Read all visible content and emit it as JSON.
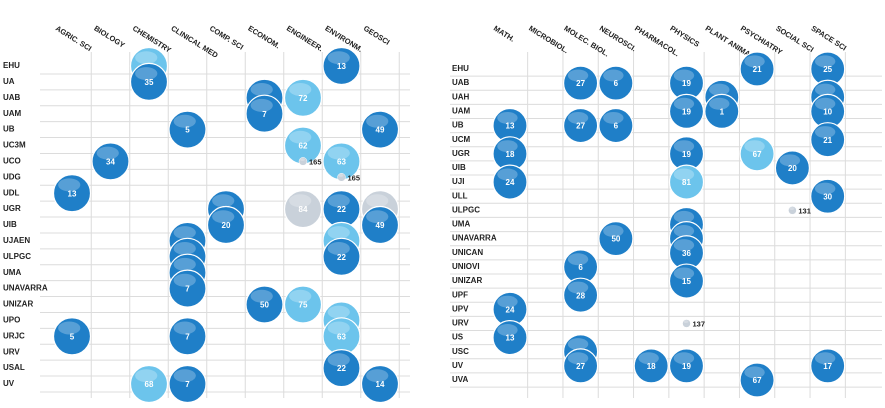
{
  "chart_data": [
    {
      "type": "bubble",
      "columns": [
        "AGRIC. SCI",
        "BIOLOGY",
        "CHEMISTRY",
        "CLINICAL MED",
        "COMP. SCI",
        "ECONOM.",
        "ENGINEER.",
        "ENVIRONM.",
        "GEOSCI"
      ],
      "rows": [
        "EHU",
        "UA",
        "UAB",
        "UAM",
        "UB",
        "UC3M",
        "UCO",
        "UDG",
        "UDL",
        "UGR",
        "UIB",
        "UJAEN",
        "ULPGC",
        "UMA",
        "UNAVARRA",
        "UNIZAR",
        "UPO",
        "URJC",
        "URV",
        "USAL",
        "UV"
      ],
      "grid": true,
      "bubbles": [
        {
          "row": "EHU",
          "column": "CHEMISTRY",
          "value": 68,
          "color": "#6cc4ec"
        },
        {
          "row": "EHU",
          "column": "ENVIRONM.",
          "value": 13,
          "color": "#1f7fc8"
        },
        {
          "row": "UA",
          "column": "CHEMISTRY",
          "value": 35,
          "color": "#1f7fc8"
        },
        {
          "row": "UAB",
          "column": "ECONOM.",
          "value": 7,
          "color": "#1f7fc8"
        },
        {
          "row": "UAB",
          "column": "ENGINEER.",
          "value": 72,
          "color": "#6cc4ec"
        },
        {
          "row": "UAM",
          "column": "ECONOM.",
          "value": 7,
          "color": "#1f7fc8"
        },
        {
          "row": "UB",
          "column": "CLINICAL MED",
          "value": 5,
          "color": "#1f7fc8"
        },
        {
          "row": "UB",
          "column": "GEOSCI",
          "value": 49,
          "color": "#1f7fc8"
        },
        {
          "row": "UC3M",
          "column": "ENGINEER.",
          "value": 62,
          "color": "#6cc4ec"
        },
        {
          "row": "UCO",
          "column": "BIOLOGY",
          "value": 34,
          "color": "#1f7fc8"
        },
        {
          "row": "UCO",
          "column": "ENGINEER.",
          "value": 165,
          "color": "#c9d1da"
        },
        {
          "row": "UCO",
          "column": "ENVIRONM.",
          "value": 63,
          "color": "#6cc4ec"
        },
        {
          "row": "UDG",
          "column": "ENVIRONM.",
          "value": 165,
          "color": "#c9d1da"
        },
        {
          "row": "UDL",
          "column": "AGRIC. SCI",
          "value": 13,
          "color": "#1f7fc8"
        },
        {
          "row": "UGR",
          "column": "COMP. SCI",
          "value": 20,
          "color": "#1f7fc8"
        },
        {
          "row": "UGR",
          "column": "ENGINEER.",
          "value": 84,
          "color": "#c9d1da"
        },
        {
          "row": "UGR",
          "column": "ENVIRONM.",
          "value": 22,
          "color": "#1f7fc8"
        },
        {
          "row": "UGR",
          "column": "GEOSCI",
          "value": 72,
          "color": "#c9d1da"
        },
        {
          "row": "UIB",
          "column": "COMP. SCI",
          "value": 20,
          "color": "#1f7fc8"
        },
        {
          "row": "UIB",
          "column": "GEOSCI",
          "value": 49,
          "color": "#1f7fc8"
        },
        {
          "row": "UJAEN",
          "column": "CLINICAL MED",
          "value": 7,
          "color": "#1f7fc8"
        },
        {
          "row": "UJAEN",
          "column": "ENVIRONM.",
          "value": 63,
          "color": "#6cc4ec"
        },
        {
          "row": "ULPGC",
          "column": "CLINICAL MED",
          "value": 7,
          "color": "#1f7fc8"
        },
        {
          "row": "ULPGC",
          "column": "ENVIRONM.",
          "value": 22,
          "color": "#1f7fc8"
        },
        {
          "row": "UMA",
          "column": "CLINICAL MED",
          "value": 7,
          "color": "#1f7fc8"
        },
        {
          "row": "UNAVARRA",
          "column": "CLINICAL MED",
          "value": 7,
          "color": "#1f7fc8"
        },
        {
          "row": "UNIZAR",
          "column": "ECONOM.",
          "value": 50,
          "color": "#1f7fc8"
        },
        {
          "row": "UNIZAR",
          "column": "ENGINEER.",
          "value": 75,
          "color": "#6cc4ec"
        },
        {
          "row": "UPO",
          "column": "ENVIRONM.",
          "value": 63,
          "color": "#6cc4ec"
        },
        {
          "row": "URJC",
          "column": "AGRIC. SCI",
          "value": 5,
          "color": "#1f7fc8"
        },
        {
          "row": "URJC",
          "column": "CLINICAL MED",
          "value": 7,
          "color": "#1f7fc8"
        },
        {
          "row": "URJC",
          "column": "ENVIRONM.",
          "value": 63,
          "color": "#6cc4ec"
        },
        {
          "row": "USAL",
          "column": "ENVIRONM.",
          "value": 22,
          "color": "#1f7fc8"
        },
        {
          "row": "UV",
          "column": "CHEMISTRY",
          "value": 68,
          "color": "#6cc4ec"
        },
        {
          "row": "UV",
          "column": "CLINICAL MED",
          "value": 7,
          "color": "#1f7fc8"
        },
        {
          "row": "UV",
          "column": "GEOSCI",
          "value": 14,
          "color": "#1f7fc8"
        }
      ]
    },
    {
      "type": "bubble",
      "columns": [
        "MATH.",
        "MICROBIOL.",
        "MOLEC. BIOL.",
        "NEUROSCI.",
        "PHARMACOL.",
        "PHYSICS",
        "PLANT ANIMAL",
        "PSYCHIATRY",
        "SOCIAL SCI",
        "SPACE SCI"
      ],
      "rows": [
        "EHU",
        "UAB",
        "UAH",
        "UAM",
        "UB",
        "UCM",
        "UGR",
        "UIB",
        "UJI",
        "ULL",
        "ULPGC",
        "UMA",
        "UNAVARRA",
        "UNICAN",
        "UNIOVI",
        "UNIZAR",
        "UPF",
        "UPV",
        "URV",
        "US",
        "USC",
        "UV",
        "UVA"
      ],
      "grid": true,
      "bubbles": [
        {
          "row": "EHU",
          "column": "PSYCHIATRY",
          "value": 21,
          "color": "#1f7fc8"
        },
        {
          "row": "EHU",
          "column": "SPACE SCI",
          "value": 25,
          "color": "#1f7fc8"
        },
        {
          "row": "UAB",
          "column": "MOLEC. BIOL.",
          "value": 27,
          "color": "#1f7fc8"
        },
        {
          "row": "UAB",
          "column": "NEUROSCI.",
          "value": 6,
          "color": "#1f7fc8"
        },
        {
          "row": "UAB",
          "column": "PHYSICS",
          "value": 19,
          "color": "#1f7fc8"
        },
        {
          "row": "UAH",
          "column": "PLANT ANIMAL",
          "value": 29,
          "color": "#1f7fc8"
        },
        {
          "row": "UAH",
          "column": "SPACE SCI",
          "value": 10,
          "color": "#1f7fc8"
        },
        {
          "row": "UAM",
          "column": "PHYSICS",
          "value": 19,
          "color": "#1f7fc8"
        },
        {
          "row": "UAM",
          "column": "PLANT ANIMAL",
          "value": 1,
          "color": "#1f7fc8"
        },
        {
          "row": "UAM",
          "column": "SPACE SCI",
          "value": 10,
          "color": "#1f7fc8"
        },
        {
          "row": "UB",
          "column": "MATH.",
          "value": 13,
          "color": "#1f7fc8"
        },
        {
          "row": "UB",
          "column": "MOLEC. BIOL.",
          "value": 27,
          "color": "#1f7fc8"
        },
        {
          "row": "UB",
          "column": "NEUROSCI.",
          "value": 6,
          "color": "#1f7fc8"
        },
        {
          "row": "UCM",
          "column": "SPACE SCI",
          "value": 21,
          "color": "#1f7fc8"
        },
        {
          "row": "UGR",
          "column": "MATH.",
          "value": 18,
          "color": "#1f7fc8"
        },
        {
          "row": "UGR",
          "column": "PHYSICS",
          "value": 19,
          "color": "#1f7fc8"
        },
        {
          "row": "UGR",
          "column": "PSYCHIATRY",
          "value": 67,
          "color": "#6cc4ec"
        },
        {
          "row": "UIB",
          "column": "SOCIAL SCI",
          "value": 20,
          "color": "#1f7fc8"
        },
        {
          "row": "UJI",
          "column": "MATH.",
          "value": 24,
          "color": "#1f7fc8"
        },
        {
          "row": "UJI",
          "column": "PHYSICS",
          "value": 81,
          "color": "#6cc4ec"
        },
        {
          "row": "ULL",
          "column": "SPACE SCI",
          "value": 30,
          "color": "#1f7fc8"
        },
        {
          "row": "ULPGC",
          "column": "SOCIAL SCI",
          "value": 131,
          "color": "#c9d1da"
        },
        {
          "row": "UMA",
          "column": "PHYSICS",
          "value": 16,
          "color": "#1f7fc8"
        },
        {
          "row": "UNAVARRA",
          "column": "NEUROSCI.",
          "value": 50,
          "color": "#1f7fc8"
        },
        {
          "row": "UNAVARRA",
          "column": "PHYSICS",
          "value": 36,
          "color": "#1f7fc8"
        },
        {
          "row": "UNICAN",
          "column": "PHYSICS",
          "value": 36,
          "color": "#1f7fc8"
        },
        {
          "row": "UNIOVI",
          "column": "MOLEC. BIOL.",
          "value": 6,
          "color": "#1f7fc8"
        },
        {
          "row": "UNIZAR",
          "column": "PHYSICS",
          "value": 15,
          "color": "#1f7fc8"
        },
        {
          "row": "UPF",
          "column": "MOLEC. BIOL.",
          "value": 28,
          "color": "#1f7fc8"
        },
        {
          "row": "UPV",
          "column": "MATH.",
          "value": 24,
          "color": "#1f7fc8"
        },
        {
          "row": "URV",
          "column": "PHYSICS",
          "value": 137,
          "color": "#c9d1da"
        },
        {
          "row": "US",
          "column": "MATH.",
          "value": 13,
          "color": "#1f7fc8"
        },
        {
          "row": "USC",
          "column": "MOLEC. BIOL.",
          "value": 28,
          "color": "#1f7fc8"
        },
        {
          "row": "UV",
          "column": "MOLEC. BIOL.",
          "value": 27,
          "color": "#1f7fc8"
        },
        {
          "row": "UV",
          "column": "PHARMACOL.",
          "value": 18,
          "color": "#1f7fc8"
        },
        {
          "row": "UV",
          "column": "PHYSICS",
          "value": 19,
          "color": "#1f7fc8"
        },
        {
          "row": "UV",
          "column": "SPACE SCI",
          "value": 17,
          "color": "#1f7fc8"
        },
        {
          "row": "UVA",
          "column": "PSYCHIATRY",
          "value": 67,
          "color": "#1f7fc8"
        }
      ]
    }
  ]
}
